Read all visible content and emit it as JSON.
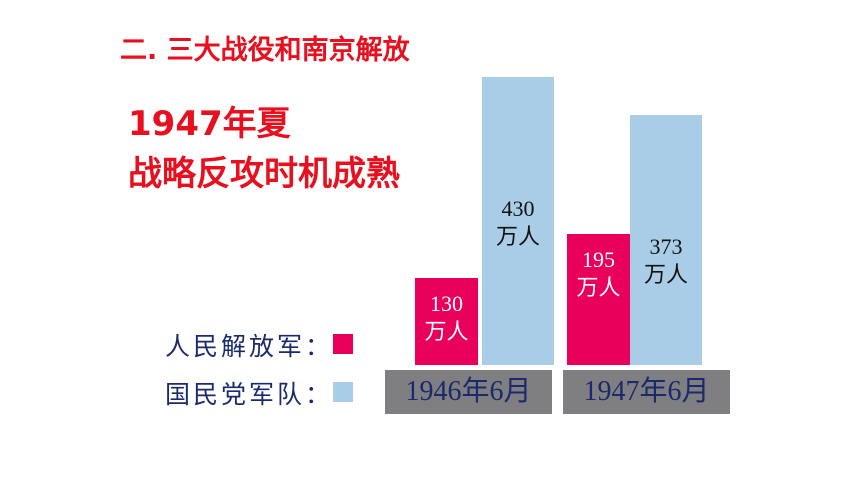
{
  "chart_data": {
    "type": "bar",
    "title": "二. 三大战役和南京解放",
    "annotations": [
      "1947年夏",
      "战略反攻时机成熟"
    ],
    "categories": [
      "1946年6月",
      "1947年6月"
    ],
    "series": [
      {
        "name": "人民解放军：",
        "color": "#e8005a",
        "values": [
          130,
          195
        ],
        "value_labels": [
          "130\n万人",
          "195\n万人"
        ]
      },
      {
        "name": "国民党军队：",
        "color": "#a9cde6",
        "values": [
          430,
          373
        ],
        "value_labels": [
          "430\n万人",
          "373\n万人"
        ]
      }
    ]
  }
}
